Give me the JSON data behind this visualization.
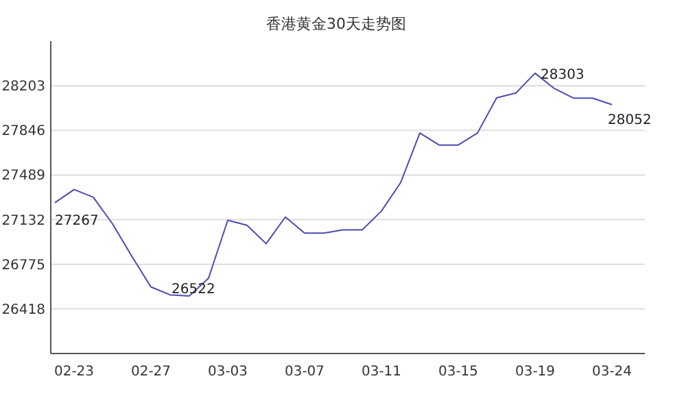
{
  "chart_data": {
    "type": "line",
    "title": "香港黄金30天走势图",
    "categories": [
      null,
      "02-23",
      null,
      null,
      null,
      "02-27",
      null,
      null,
      null,
      "03-03",
      null,
      null,
      null,
      "03-07",
      null,
      null,
      null,
      "03-11",
      null,
      null,
      null,
      "03-15",
      null,
      null,
      null,
      "03-19",
      null,
      null,
      null,
      "03-24"
    ],
    "values": [
      27267,
      27373,
      27311,
      27098,
      26840,
      26594,
      26530,
      26522,
      26664,
      27127,
      27087,
      26940,
      27153,
      27024,
      27024,
      27050,
      27050,
      27200,
      27428,
      27825,
      27729,
      27729,
      27825,
      28107,
      28145,
      28303,
      28181,
      28104,
      28104,
      28052
    ],
    "value_labels": [
      "27267",
      null,
      null,
      null,
      null,
      null,
      null,
      "26522",
      null,
      null,
      null,
      null,
      null,
      null,
      null,
      null,
      null,
      null,
      null,
      null,
      null,
      null,
      null,
      null,
      null,
      "28303",
      null,
      null,
      null,
      "28052"
    ],
    "color": "#4a4ab0",
    "ylim": [
      26061,
      28560
    ],
    "yticks": [
      26418,
      26775,
      27132,
      27489,
      27846,
      28203
    ],
    "grid": "y"
  }
}
